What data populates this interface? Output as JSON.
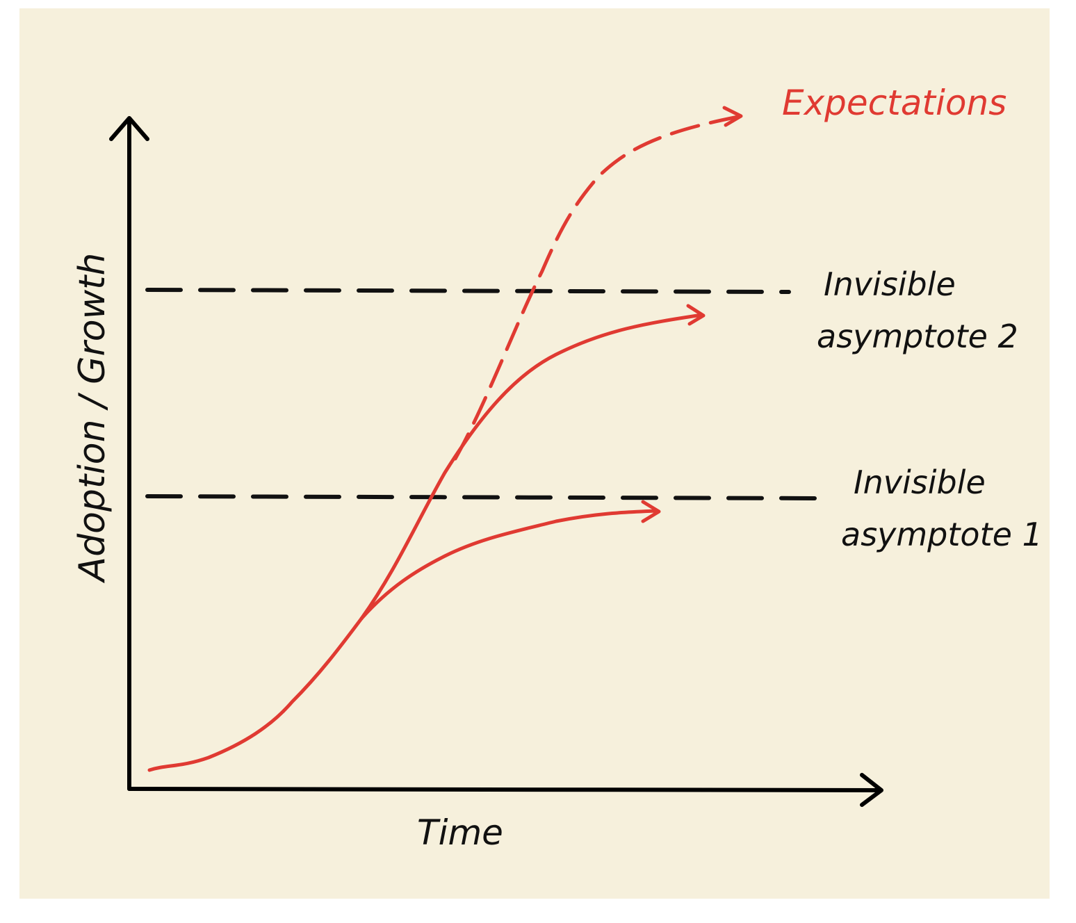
{
  "axes": {
    "y_label": "Adoption / Growth",
    "x_label": "Time"
  },
  "labels": {
    "expectations": "Expectations",
    "asymptote_2": {
      "line_1": "Invisible",
      "line_2": "asymptote 2"
    },
    "asymptote_1": {
      "line_1": "Invisible",
      "line_2": "asymptote 1"
    }
  }
}
